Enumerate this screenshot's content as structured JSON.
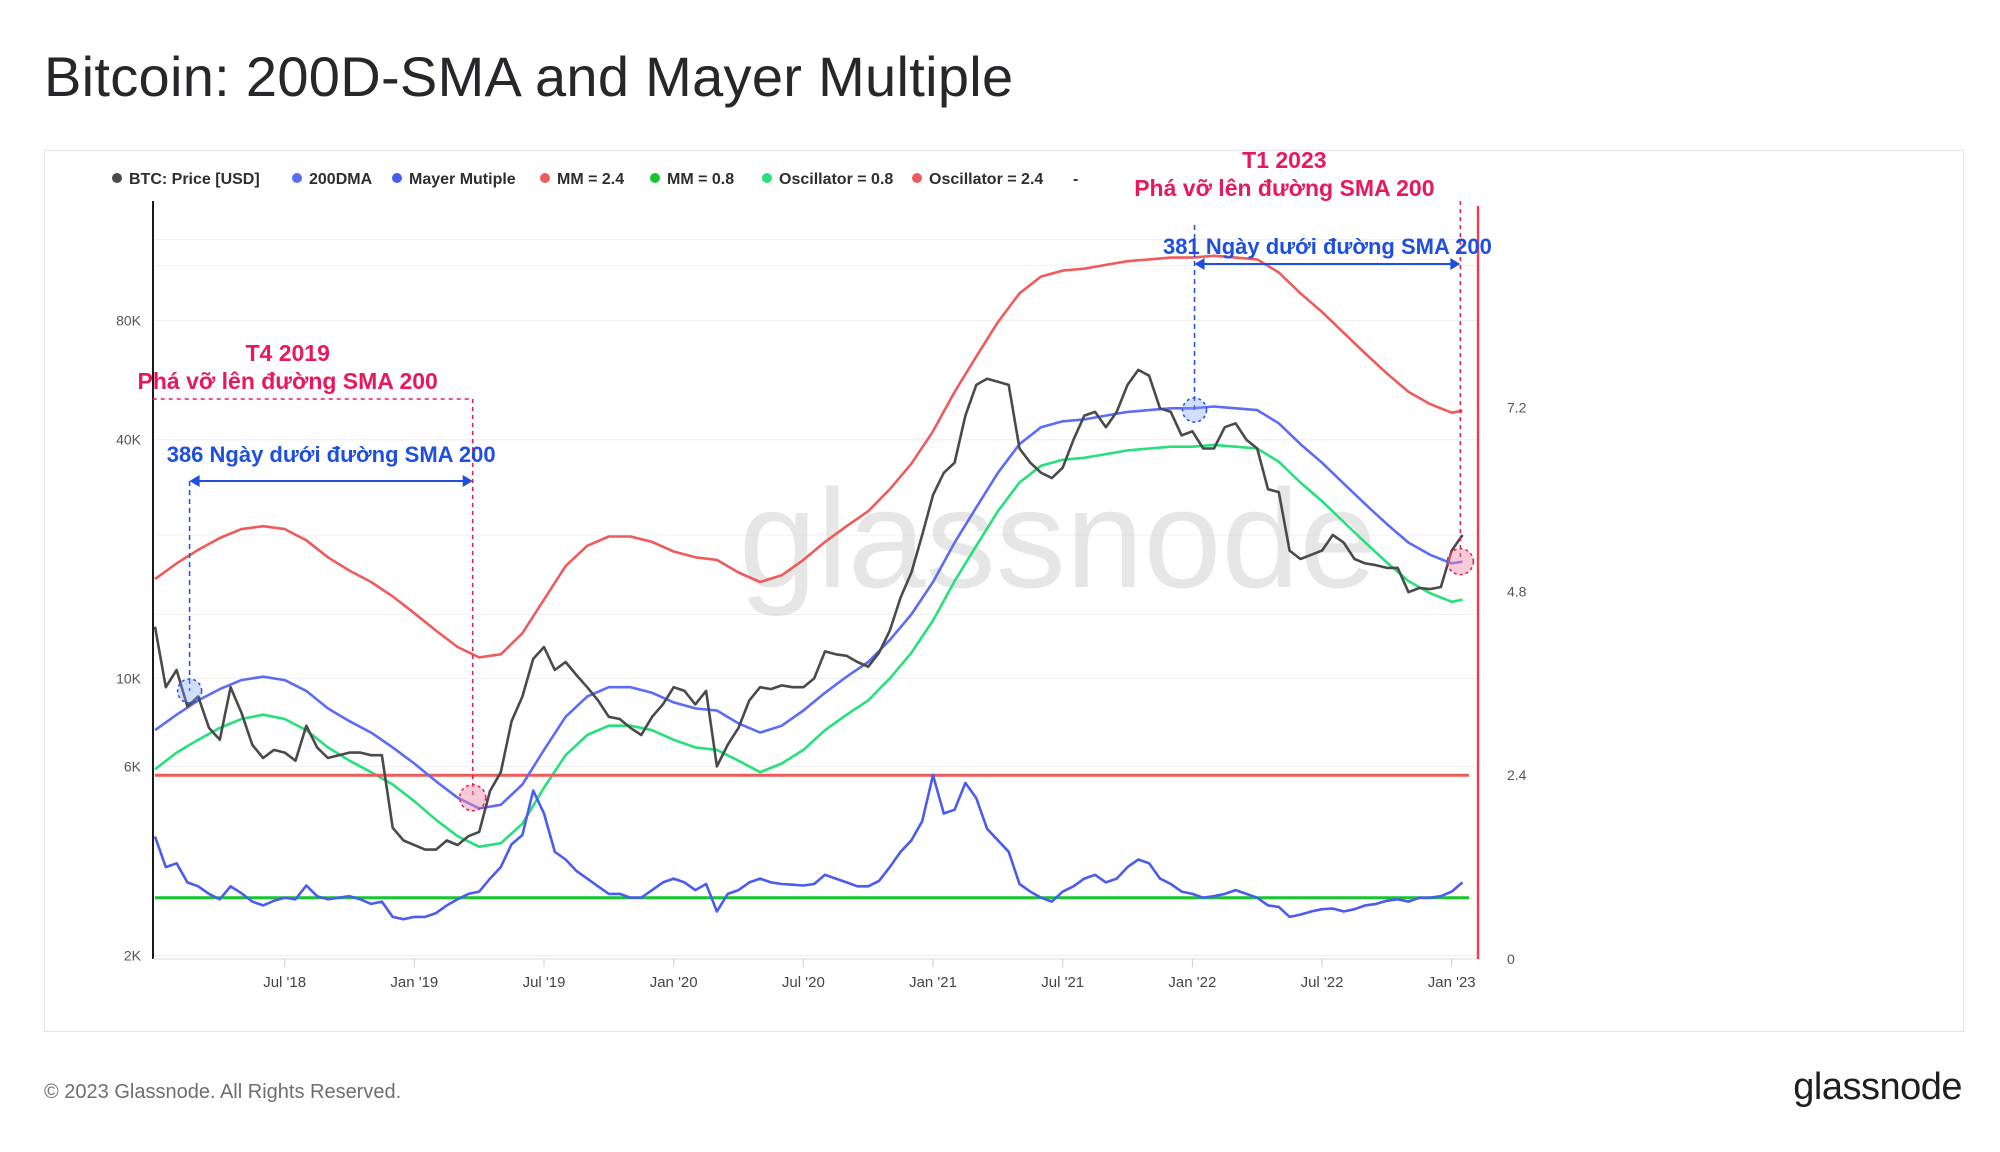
{
  "page": {
    "title": "Bitcoin: 200D-SMA and Mayer Multiple",
    "copyright": "© 2023 Glassnode. All Rights Reserved.",
    "logo": "glassnode",
    "watermark": "glassnode"
  },
  "chart_data": {
    "type": "line",
    "title": "Bitcoin: 200D-SMA and Mayer Multiple",
    "legend_position": "top-left",
    "legend": [
      {
        "label": "BTC: Price [USD]",
        "color": "#4a4a4a"
      },
      {
        "label": "200DMA",
        "color": "#5b6cf7"
      },
      {
        "label": "Mayer Mutiple",
        "color": "#4a5cf0"
      },
      {
        "label": "MM = 2.4",
        "color": "#ef5b5b"
      },
      {
        "label": "MM = 0.8",
        "color": "#17c52d"
      },
      {
        "label": "Oscillator = 0.8",
        "color": "#26e07a"
      },
      {
        "label": "Oscillator = 2.4",
        "color": "#ef5b5b"
      },
      {
        "label": "-",
        "color": null
      }
    ],
    "x_axis": {
      "ticks": [
        "Jul '18",
        "Jan '19",
        "Jul '19",
        "Jan '20",
        "Jul '20",
        "Jan '21",
        "Jul '21",
        "Jan '22",
        "Jul '22",
        "Jan '23"
      ],
      "tick_t": [
        6.0,
        12.0,
        18.0,
        24.0,
        30.0,
        36.0,
        42.0,
        48.0,
        54.0,
        60.0
      ],
      "range_t": [
        0.0,
        60.8
      ]
    },
    "y_left": {
      "scale": "log",
      "ticks": [
        "2K",
        "6K",
        "10K",
        "40K",
        "80K"
      ],
      "tick_values": [
        2000,
        6000,
        10000,
        40000,
        80000
      ],
      "range": [
        1960,
        160000
      ]
    },
    "y_right": {
      "ticks": [
        "0",
        "2.4",
        "4.8",
        "7.2"
      ],
      "tick_values": [
        0,
        2.4,
        4.8,
        7.2
      ],
      "range": [
        0,
        9.9
      ]
    },
    "series": [
      {
        "name": "BTC: Price [USD]",
        "axis": "left",
        "color": "#4a4a4a",
        "t": [
          0,
          0.5,
          1.0,
          1.5,
          2.0,
          2.5,
          3.0,
          3.5,
          4.0,
          4.5,
          5.0,
          5.5,
          6.0,
          6.5,
          7.0,
          7.5,
          8.0,
          8.5,
          9.0,
          9.5,
          10.0,
          10.5,
          11.0,
          11.5,
          12.0,
          12.5,
          13.0,
          13.5,
          14.0,
          14.5,
          15.0,
          15.5,
          16.0,
          16.5,
          17.0,
          17.5,
          18.0,
          18.5,
          19.0,
          19.5,
          20.0,
          20.5,
          21.0,
          21.5,
          22.0,
          22.5,
          23.0,
          23.5,
          24.0,
          24.5,
          25.0,
          25.5,
          26.0,
          26.5,
          27.0,
          27.5,
          28.0,
          28.5,
          29.0,
          29.5,
          30.0,
          30.5,
          31.0,
          31.5,
          32.0,
          32.5,
          33.0,
          33.5,
          34.0,
          34.5,
          35.0,
          35.5,
          36.0,
          36.5,
          37.0,
          37.5,
          38.0,
          38.5,
          39.0,
          39.5,
          40.0,
          40.5,
          41.0,
          41.5,
          42.0,
          42.5,
          43.0,
          43.5,
          44.0,
          44.5,
          45.0,
          45.5,
          46.0,
          46.5,
          47.0,
          47.5,
          48.0,
          48.5,
          49.0,
          49.5,
          50.0,
          50.5,
          51.0,
          51.5,
          52.0,
          52.5,
          53.0,
          53.5,
          54.0,
          54.5,
          55.0,
          55.5,
          56.0,
          56.5,
          57.0,
          57.5,
          58.0,
          58.5,
          59.0,
          59.5,
          60.0,
          60.5
        ],
        "values": [
          13500,
          9500,
          10500,
          8500,
          9000,
          7500,
          7000,
          9500,
          8200,
          6800,
          6300,
          6600,
          6500,
          6200,
          7600,
          6700,
          6300,
          6400,
          6500,
          6500,
          6400,
          6400,
          4200,
          3900,
          3800,
          3700,
          3700,
          3900,
          3800,
          4000,
          4100,
          5200,
          5800,
          7800,
          9000,
          11200,
          12000,
          10500,
          11000,
          10200,
          9500,
          8800,
          8000,
          7900,
          7500,
          7200,
          8000,
          8600,
          9500,
          9300,
          8600,
          9300,
          6000,
          6800,
          7500,
          8800,
          9500,
          9400,
          9600,
          9500,
          9500,
          10000,
          11700,
          11500,
          11400,
          11000,
          10700,
          11600,
          13200,
          16000,
          18500,
          23000,
          29000,
          33000,
          35000,
          46000,
          55000,
          57000,
          56000,
          55000,
          38000,
          35000,
          33000,
          32000,
          34000,
          40000,
          46000,
          47000,
          43000,
          47000,
          55000,
          60000,
          58000,
          48000,
          47000,
          41000,
          42000,
          38000,
          38000,
          43000,
          44000,
          40000,
          38000,
          30000,
          29500,
          21000,
          20000,
          20500,
          21000,
          23000,
          22000,
          20000,
          19500,
          19300,
          19000,
          19000,
          16500,
          16900,
          16800,
          17000,
          21000,
          23000
        ],
        "note": "approximate monthly closes"
      },
      {
        "name": "200DMA",
        "axis": "left",
        "color": "#5b6cf7",
        "t": [
          0,
          1,
          2,
          3,
          4,
          5,
          6,
          7,
          8,
          9,
          10,
          11,
          12,
          13,
          14,
          15,
          16,
          17,
          18,
          19,
          20,
          21,
          22,
          23,
          24,
          25,
          26,
          27,
          28,
          29,
          30,
          31,
          32,
          33,
          34,
          35,
          36,
          37,
          38,
          39,
          40,
          41,
          42,
          43,
          44,
          45,
          46,
          47,
          48,
          49,
          50,
          51,
          52,
          53,
          54,
          55,
          56,
          57,
          58,
          59,
          60,
          60.5
        ],
        "values": [
          7400,
          8100,
          8800,
          9400,
          9900,
          10100,
          9900,
          9300,
          8400,
          7800,
          7300,
          6700,
          6100,
          5500,
          5000,
          4700,
          4800,
          5400,
          6600,
          8000,
          9000,
          9500,
          9500,
          9200,
          8700,
          8400,
          8300,
          7700,
          7300,
          7600,
          8300,
          9200,
          10100,
          11000,
          12500,
          14500,
          17500,
          22000,
          27000,
          33000,
          39000,
          43000,
          44500,
          45000,
          46000,
          47000,
          47500,
          48000,
          48000,
          48500,
          48000,
          47500,
          44000,
          39000,
          35000,
          31000,
          27500,
          24500,
          22000,
          20500,
          19500,
          19700
        ]
      },
      {
        "name": "Oscillator = 0.8",
        "axis": "left",
        "color": "#26e07a",
        "t": [
          0,
          1,
          2,
          3,
          4,
          5,
          6,
          7,
          8,
          9,
          10,
          11,
          12,
          13,
          14,
          15,
          16,
          17,
          18,
          19,
          20,
          21,
          22,
          23,
          24,
          25,
          26,
          27,
          28,
          29,
          30,
          31,
          32,
          33,
          34,
          35,
          36,
          37,
          38,
          39,
          40,
          41,
          42,
          43,
          44,
          45,
          46,
          47,
          48,
          49,
          50,
          51,
          52,
          53,
          54,
          55,
          56,
          57,
          58,
          59,
          60,
          60.5
        ],
        "values": [
          5900,
          6500,
          7000,
          7500,
          7900,
          8100,
          7900,
          7400,
          6700,
          6200,
          5800,
          5400,
          4900,
          4400,
          4000,
          3760,
          3840,
          4300,
          5300,
          6400,
          7200,
          7600,
          7600,
          7400,
          7000,
          6700,
          6600,
          6200,
          5800,
          6100,
          6600,
          7400,
          8100,
          8800,
          10000,
          11600,
          14000,
          17600,
          21600,
          26400,
          31200,
          34400,
          35600,
          36000,
          36800,
          37600,
          38000,
          38400,
          38400,
          38800,
          38400,
          38000,
          35200,
          31200,
          28000,
          24800,
          22000,
          19600,
          17600,
          16400,
          15600,
          15800
        ]
      },
      {
        "name": "Oscillator = 2.4",
        "axis": "left",
        "color": "#ef5b5b",
        "t": [
          0,
          1,
          2,
          3,
          4,
          5,
          6,
          7,
          8,
          9,
          10,
          11,
          12,
          13,
          14,
          15,
          16,
          17,
          18,
          19,
          20,
          21,
          22,
          23,
          24,
          25,
          26,
          27,
          28,
          29,
          30,
          31,
          32,
          33,
          34,
          35,
          36,
          37,
          38,
          39,
          40,
          41,
          42,
          43,
          44,
          45,
          46,
          47,
          48,
          49,
          50,
          51,
          52,
          53,
          54,
          55,
          56,
          57,
          58,
          59,
          60,
          60.5
        ],
        "values": [
          17800,
          19500,
          21100,
          22600,
          23800,
          24200,
          23800,
          22300,
          20200,
          18700,
          17500,
          16100,
          14600,
          13200,
          12000,
          11300,
          11500,
          13000,
          15800,
          19200,
          21600,
          22800,
          22800,
          22100,
          20900,
          20200,
          19900,
          18500,
          17500,
          18200,
          19900,
          22100,
          24200,
          26400,
          30000,
          34800,
          42000,
          52800,
          64800,
          79200,
          93600,
          103200,
          106800,
          108000,
          110400,
          112800,
          114000,
          115200,
          115200,
          116400,
          115200,
          114000,
          105600,
          93600,
          84000,
          74400,
          66000,
          58800,
          52800,
          49200,
          46800,
          47300
        ]
      },
      {
        "name": "Mayer Mutiple",
        "axis": "right",
        "color": "#4a5cf0",
        "t": [
          0,
          0.5,
          1.0,
          1.5,
          2.0,
          2.5,
          3.0,
          3.5,
          4.0,
          4.5,
          5.0,
          5.5,
          6.0,
          6.5,
          7.0,
          7.5,
          8.0,
          8.5,
          9.0,
          9.5,
          10.0,
          10.5,
          11.0,
          11.5,
          12.0,
          12.5,
          13.0,
          13.5,
          14.0,
          14.5,
          15.0,
          15.5,
          16.0,
          16.5,
          17.0,
          17.5,
          18.0,
          18.5,
          19.0,
          19.5,
          20.0,
          20.5,
          21.0,
          21.5,
          22.0,
          22.5,
          23.0,
          23.5,
          24.0,
          24.5,
          25.0,
          25.5,
          26.0,
          26.5,
          27.0,
          27.5,
          28.0,
          28.5,
          29.0,
          29.5,
          30.0,
          30.5,
          31.0,
          31.5,
          32.0,
          32.5,
          33.0,
          33.5,
          34.0,
          34.5,
          35.0,
          35.5,
          36.0,
          36.5,
          37.0,
          37.5,
          38.0,
          38.5,
          39.0,
          39.5,
          40.0,
          40.5,
          41.0,
          41.5,
          42.0,
          42.5,
          43.0,
          43.5,
          44.0,
          44.5,
          45.0,
          45.5,
          46.0,
          46.5,
          47.0,
          47.5,
          48.0,
          48.5,
          49.0,
          49.5,
          50.0,
          50.5,
          51.0,
          51.5,
          52.0,
          52.5,
          53.0,
          53.5,
          54.0,
          54.5,
          55.0,
          55.5,
          56.0,
          56.5,
          57.0,
          57.5,
          58.0,
          58.5,
          59.0,
          59.5,
          60.0,
          60.5
        ],
        "values": [
          1.6,
          1.2,
          1.25,
          1.0,
          0.95,
          0.85,
          0.78,
          0.95,
          0.86,
          0.75,
          0.7,
          0.76,
          0.8,
          0.78,
          0.96,
          0.82,
          0.78,
          0.8,
          0.82,
          0.78,
          0.72,
          0.75,
          0.55,
          0.52,
          0.55,
          0.55,
          0.6,
          0.7,
          0.78,
          0.85,
          0.88,
          1.05,
          1.2,
          1.5,
          1.62,
          2.2,
          1.9,
          1.4,
          1.3,
          1.15,
          1.05,
          0.95,
          0.85,
          0.85,
          0.8,
          0.8,
          0.9,
          1.0,
          1.05,
          1.0,
          0.9,
          0.98,
          0.62,
          0.85,
          0.9,
          1.0,
          1.05,
          1.0,
          0.98,
          0.97,
          0.96,
          0.98,
          1.1,
          1.05,
          1.0,
          0.95,
          0.95,
          1.02,
          1.2,
          1.4,
          1.55,
          1.8,
          2.4,
          1.9,
          1.95,
          2.3,
          2.1,
          1.7,
          1.55,
          1.4,
          0.98,
          0.88,
          0.8,
          0.75,
          0.88,
          0.95,
          1.05,
          1.1,
          1.0,
          1.05,
          1.2,
          1.3,
          1.25,
          1.05,
          0.98,
          0.88,
          0.85,
          0.8,
          0.82,
          0.85,
          0.9,
          0.85,
          0.8,
          0.7,
          0.68,
          0.55,
          0.58,
          0.62,
          0.65,
          0.66,
          0.62,
          0.65,
          0.7,
          0.72,
          0.76,
          0.78,
          0.75,
          0.8,
          0.8,
          0.82,
          0.88,
          1.0
        ]
      },
      {
        "name": "MM = 2.4",
        "axis": "right",
        "color": "#ef5b5b",
        "t": [
          0,
          60.8
        ],
        "values": [
          2.4,
          2.4
        ]
      },
      {
        "name": "MM = 0.8",
        "axis": "right",
        "color": "#17c52d",
        "t": [
          0,
          60.8
        ],
        "values": [
          0.8,
          0.8
        ]
      }
    ],
    "annotations": [
      {
        "id": "breakout-2019",
        "title": "T4 2019",
        "subtitle": "Phá vỡ lên đường SMA 200",
        "color": "#e8195a",
        "days_label": "386 Ngày dưới đường SMA 200",
        "days_color": "#1f4fe0",
        "start_t": 1.6,
        "end_t": 14.7,
        "start_price": 9300,
        "end_price": 5000
      },
      {
        "id": "breakout-2023",
        "title": "T1 2023",
        "subtitle": "Phá vỡ lên đường SMA 200",
        "color": "#e8195a",
        "days_label": "381 Ngày dưới đường SMA 200",
        "days_color": "#1f4fe0",
        "start_t": 48.1,
        "end_t": 60.4,
        "start_price": 47500,
        "end_price": 19700
      }
    ]
  }
}
